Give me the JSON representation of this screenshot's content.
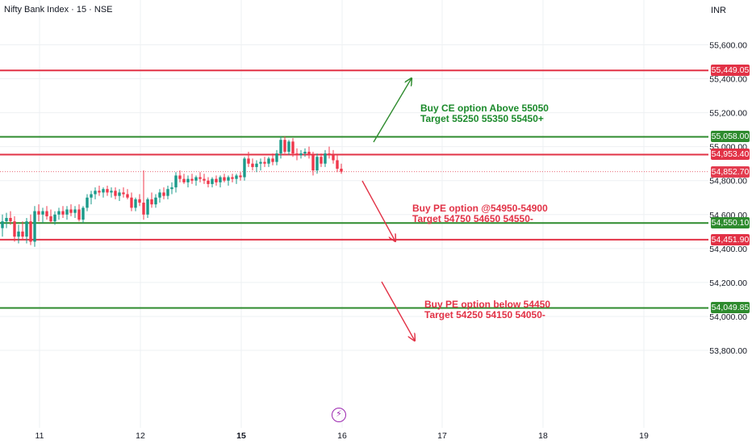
{
  "header": {
    "title": "Nifty Bank Index · 15 · NSE",
    "currency": "INR"
  },
  "colors": {
    "up": "#1a9a8a",
    "down": "#f0384c",
    "green_line": "#2e8b2e",
    "red_line": "#e23246",
    "grid": "#eef0f3",
    "axis_text": "#131722",
    "event_icon": "#9c27b0"
  },
  "event_icon": "lightning-bolt-icon",
  "chart_data": {
    "type": "candlestick",
    "symbol": "Nifty Bank Index",
    "interval": "15",
    "exchange": "NSE",
    "x_tick_labels": [
      "11",
      "12",
      "15",
      "16",
      "17",
      "18",
      "19"
    ],
    "y_tick_labels": [
      "55,600.00",
      "55,400.00",
      "55,200.00",
      "55,000.00",
      "54,800.00",
      "54,600.00",
      "54,400.00",
      "54,200.00",
      "54,000.00",
      "53,800.00"
    ],
    "y_ticks": [
      55600,
      55400,
      55200,
      55000,
      54800,
      54600,
      54400,
      54200,
      54000,
      53800
    ],
    "ylim": [
      53700,
      55700
    ],
    "last_price": 54852.7,
    "last_price_label": "54,852.70",
    "levels": [
      {
        "value": 55449.05,
        "label": "55,449.05",
        "color": "red"
      },
      {
        "value": 55058.0,
        "label": "55,058.00",
        "color": "green"
      },
      {
        "value": 54953.4,
        "label": "54,953.40",
        "color": "red"
      },
      {
        "value": 54550.1,
        "label": "54,550.10",
        "color": "green"
      },
      {
        "value": 54451.9,
        "label": "54,451.90",
        "color": "red"
      },
      {
        "value": 54049.85,
        "label": "54,049.85",
        "color": "green"
      }
    ],
    "candles": [
      {
        "o": 54520,
        "h": 54600,
        "l": 54470,
        "c": 54560
      },
      {
        "o": 54560,
        "h": 54610,
        "l": 54520,
        "c": 54580
      },
      {
        "o": 54580,
        "h": 54620,
        "l": 54540,
        "c": 54560
      },
      {
        "o": 54560,
        "h": 54590,
        "l": 54440,
        "c": 54470
      },
      {
        "o": 54470,
        "h": 54540,
        "l": 54430,
        "c": 54500
      },
      {
        "o": 54500,
        "h": 54560,
        "l": 54450,
        "c": 54470
      },
      {
        "o": 54470,
        "h": 54580,
        "l": 54430,
        "c": 54560
      },
      {
        "o": 54560,
        "h": 54600,
        "l": 54420,
        "c": 54440
      },
      {
        "o": 54440,
        "h": 54650,
        "l": 54410,
        "c": 54620
      },
      {
        "o": 54620,
        "h": 54660,
        "l": 54560,
        "c": 54600
      },
      {
        "o": 54600,
        "h": 54640,
        "l": 54550,
        "c": 54620
      },
      {
        "o": 54620,
        "h": 54650,
        "l": 54570,
        "c": 54590
      },
      {
        "o": 54590,
        "h": 54630,
        "l": 54550,
        "c": 54560
      },
      {
        "o": 54560,
        "h": 54620,
        "l": 54540,
        "c": 54600
      },
      {
        "o": 54600,
        "h": 54640,
        "l": 54570,
        "c": 54620
      },
      {
        "o": 54620,
        "h": 54650,
        "l": 54580,
        "c": 54600
      },
      {
        "o": 54600,
        "h": 54650,
        "l": 54570,
        "c": 54630
      },
      {
        "o": 54630,
        "h": 54660,
        "l": 54590,
        "c": 54610
      },
      {
        "o": 54610,
        "h": 54650,
        "l": 54580,
        "c": 54630
      },
      {
        "o": 54630,
        "h": 54660,
        "l": 54560,
        "c": 54570
      },
      {
        "o": 54570,
        "h": 54650,
        "l": 54550,
        "c": 54640
      },
      {
        "o": 54640,
        "h": 54720,
        "l": 54620,
        "c": 54700
      },
      {
        "o": 54700,
        "h": 54740,
        "l": 54660,
        "c": 54720
      },
      {
        "o": 54720,
        "h": 54760,
        "l": 54690,
        "c": 54740
      },
      {
        "o": 54740,
        "h": 54770,
        "l": 54710,
        "c": 54730
      },
      {
        "o": 54730,
        "h": 54760,
        "l": 54700,
        "c": 54750
      },
      {
        "o": 54750,
        "h": 54770,
        "l": 54710,
        "c": 54730
      },
      {
        "o": 54730,
        "h": 54760,
        "l": 54700,
        "c": 54740
      },
      {
        "o": 54740,
        "h": 54760,
        "l": 54690,
        "c": 54710
      },
      {
        "o": 54710,
        "h": 54750,
        "l": 54680,
        "c": 54730
      },
      {
        "o": 54730,
        "h": 54760,
        "l": 54700,
        "c": 54720
      },
      {
        "o": 54720,
        "h": 54750,
        "l": 54690,
        "c": 54700
      },
      {
        "o": 54700,
        "h": 54730,
        "l": 54620,
        "c": 54640
      },
      {
        "o": 54640,
        "h": 54700,
        "l": 54620,
        "c": 54690
      },
      {
        "o": 54690,
        "h": 54720,
        "l": 54650,
        "c": 54670
      },
      {
        "o": 54670,
        "h": 54860,
        "l": 54570,
        "c": 54600
      },
      {
        "o": 54600,
        "h": 54700,
        "l": 54580,
        "c": 54690
      },
      {
        "o": 54690,
        "h": 54730,
        "l": 54640,
        "c": 54660
      },
      {
        "o": 54660,
        "h": 54720,
        "l": 54640,
        "c": 54700
      },
      {
        "o": 54700,
        "h": 54750,
        "l": 54670,
        "c": 54730
      },
      {
        "o": 54730,
        "h": 54760,
        "l": 54690,
        "c": 54710
      },
      {
        "o": 54710,
        "h": 54770,
        "l": 54690,
        "c": 54750
      },
      {
        "o": 54750,
        "h": 54790,
        "l": 54720,
        "c": 54760
      },
      {
        "o": 54760,
        "h": 54850,
        "l": 54730,
        "c": 54830
      },
      {
        "o": 54830,
        "h": 54860,
        "l": 54790,
        "c": 54810
      },
      {
        "o": 54810,
        "h": 54840,
        "l": 54780,
        "c": 54790
      },
      {
        "o": 54790,
        "h": 54830,
        "l": 54760,
        "c": 54810
      },
      {
        "o": 54810,
        "h": 54840,
        "l": 54780,
        "c": 54800
      },
      {
        "o": 54800,
        "h": 54830,
        "l": 54770,
        "c": 54820
      },
      {
        "o": 54820,
        "h": 54850,
        "l": 54790,
        "c": 54810
      },
      {
        "o": 54810,
        "h": 54840,
        "l": 54780,
        "c": 54800
      },
      {
        "o": 54800,
        "h": 54820,
        "l": 54760,
        "c": 54780
      },
      {
        "o": 54780,
        "h": 54820,
        "l": 54760,
        "c": 54810
      },
      {
        "o": 54810,
        "h": 54830,
        "l": 54770,
        "c": 54790
      },
      {
        "o": 54790,
        "h": 54830,
        "l": 54760,
        "c": 54820
      },
      {
        "o": 54820,
        "h": 54840,
        "l": 54790,
        "c": 54800
      },
      {
        "o": 54800,
        "h": 54830,
        "l": 54770,
        "c": 54820
      },
      {
        "o": 54820,
        "h": 54840,
        "l": 54790,
        "c": 54810
      },
      {
        "o": 54810,
        "h": 54840,
        "l": 54780,
        "c": 54830
      },
      {
        "o": 54830,
        "h": 54850,
        "l": 54800,
        "c": 54820
      },
      {
        "o": 54820,
        "h": 54940,
        "l": 54800,
        "c": 54930
      },
      {
        "o": 54930,
        "h": 54970,
        "l": 54880,
        "c": 54900
      },
      {
        "o": 54900,
        "h": 54930,
        "l": 54860,
        "c": 54880
      },
      {
        "o": 54880,
        "h": 54920,
        "l": 54850,
        "c": 54900
      },
      {
        "o": 54900,
        "h": 54930,
        "l": 54860,
        "c": 54910
      },
      {
        "o": 54910,
        "h": 54940,
        "l": 54880,
        "c": 54900
      },
      {
        "o": 54900,
        "h": 54940,
        "l": 54880,
        "c": 54930
      },
      {
        "o": 54930,
        "h": 54960,
        "l": 54890,
        "c": 54910
      },
      {
        "o": 54910,
        "h": 54980,
        "l": 54890,
        "c": 54960
      },
      {
        "o": 54960,
        "h": 55060,
        "l": 54930,
        "c": 55040
      },
      {
        "o": 55040,
        "h": 55060,
        "l": 54960,
        "c": 54970
      },
      {
        "o": 54970,
        "h": 55040,
        "l": 54950,
        "c": 55030
      },
      {
        "o": 55030,
        "h": 55050,
        "l": 54940,
        "c": 54960
      },
      {
        "o": 54960,
        "h": 54990,
        "l": 54920,
        "c": 54950
      },
      {
        "o": 54950,
        "h": 54980,
        "l": 54930,
        "c": 54960
      },
      {
        "o": 54960,
        "h": 54990,
        "l": 54940,
        "c": 54970
      },
      {
        "o": 54970,
        "h": 55000,
        "l": 54930,
        "c": 54950
      },
      {
        "o": 54950,
        "h": 54970,
        "l": 54830,
        "c": 54860
      },
      {
        "o": 54860,
        "h": 54960,
        "l": 54840,
        "c": 54940
      },
      {
        "o": 54940,
        "h": 54960,
        "l": 54880,
        "c": 54900
      },
      {
        "o": 54900,
        "h": 54980,
        "l": 54880,
        "c": 54960
      },
      {
        "o": 54960,
        "h": 55000,
        "l": 54930,
        "c": 54950
      },
      {
        "o": 54950,
        "h": 54980,
        "l": 54900,
        "c": 54920
      },
      {
        "o": 54920,
        "h": 54950,
        "l": 54850,
        "c": 54870
      },
      {
        "o": 54870,
        "h": 54900,
        "l": 54840,
        "c": 54852.7
      }
    ],
    "annotations": [
      {
        "lines": [
          "Buy CE option Above 55050",
          "Target 55250 55350 55450+"
        ],
        "color": "green",
        "arrow": "up"
      },
      {
        "lines": [
          "Buy PE option @54950-54900",
          "Target 54750 54650 54550-"
        ],
        "color": "red",
        "arrow": "down"
      },
      {
        "lines": [
          "Buy PE option below 54450",
          "Target 54250 54150 54050-"
        ],
        "color": "red",
        "arrow": "down"
      }
    ]
  }
}
